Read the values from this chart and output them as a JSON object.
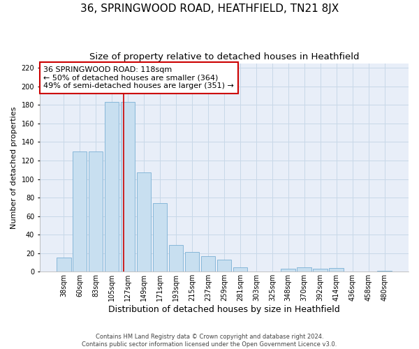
{
  "title": "36, SPRINGWOOD ROAD, HEATHFIELD, TN21 8JX",
  "subtitle": "Size of property relative to detached houses in Heathfield",
  "xlabel": "Distribution of detached houses by size in Heathfield",
  "ylabel": "Number of detached properties",
  "bar_labels": [
    "38sqm",
    "60sqm",
    "83sqm",
    "105sqm",
    "127sqm",
    "149sqm",
    "171sqm",
    "193sqm",
    "215sqm",
    "237sqm",
    "259sqm",
    "281sqm",
    "303sqm",
    "325sqm",
    "348sqm",
    "370sqm",
    "392sqm",
    "414sqm",
    "436sqm",
    "458sqm",
    "480sqm"
  ],
  "bar_values": [
    15,
    130,
    130,
    183,
    183,
    107,
    74,
    29,
    21,
    17,
    13,
    5,
    0,
    0,
    3,
    5,
    3,
    4,
    0,
    0,
    1
  ],
  "bar_color": "#c8dff0",
  "bar_edge_color": "#7ab0d4",
  "vline_color": "#cc0000",
  "vline_position": 3.75,
  "annotation_text": "36 SPRINGWOOD ROAD: 118sqm\n← 50% of detached houses are smaller (364)\n49% of semi-detached houses are larger (351) →",
  "annotation_box_facecolor": "#ffffff",
  "annotation_box_edgecolor": "#cc0000",
  "ylim": [
    0,
    225
  ],
  "yticks": [
    0,
    20,
    40,
    60,
    80,
    100,
    120,
    140,
    160,
    180,
    200,
    220
  ],
  "grid_color": "#c8d8e8",
  "plot_bg_color": "#e8eef8",
  "fig_bg_color": "#ffffff",
  "footnote": "Contains HM Land Registry data © Crown copyright and database right 2024.\nContains public sector information licensed under the Open Government Licence v3.0.",
  "title_fontsize": 11,
  "subtitle_fontsize": 9.5,
  "xlabel_fontsize": 9,
  "ylabel_fontsize": 8,
  "annotation_fontsize": 8,
  "tick_fontsize": 7,
  "footnote_fontsize": 6
}
